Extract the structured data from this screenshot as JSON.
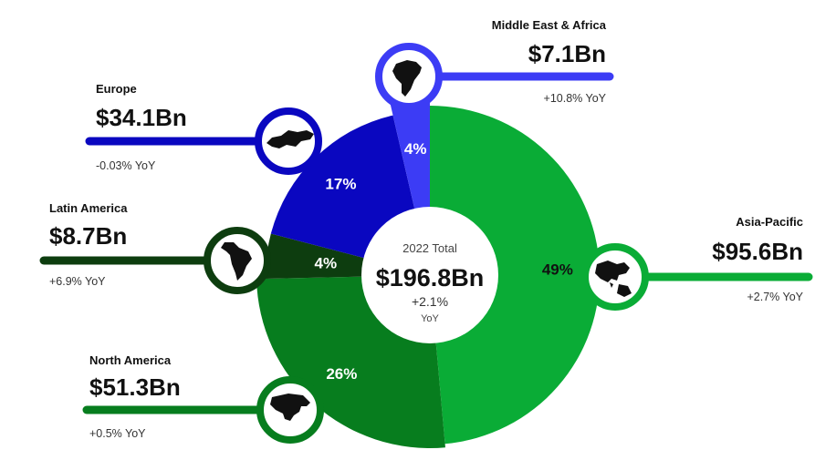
{
  "chart_data": {
    "type": "pie",
    "center": {
      "title": "2022 Total",
      "value": "$196.8Bn",
      "yoy": "+2.1%",
      "yoy_label": "YoY"
    },
    "slices": [
      {
        "name": "Asia-Pacific",
        "value_text": "$95.6Bn",
        "value": 95.6,
        "yoy": "+2.7% YoY",
        "percent_label": "49%",
        "color": "#0aac36",
        "label_color": "#111111",
        "icon": "asia-pacific-map-icon"
      },
      {
        "name": "North America",
        "value_text": "$51.3Bn",
        "value": 51.3,
        "yoy": "+0.5% YoY",
        "percent_label": "26%",
        "color": "#077d1e",
        "label_color": "#ffffff",
        "icon": "north-america-map-icon"
      },
      {
        "name": "Latin America",
        "value_text": "$8.7Bn",
        "value": 8.7,
        "yoy": "+6.9% YoY",
        "percent_label": "4%",
        "color": "#0d3d0f",
        "label_color": "#ffffff",
        "icon": "latin-america-map-icon"
      },
      {
        "name": "Europe",
        "value_text": "$34.1Bn",
        "value": 34.1,
        "yoy": "-0.03% YoY",
        "percent_label": "17%",
        "color": "#0a07c0",
        "label_color": "#ffffff",
        "icon": "europe-map-icon"
      },
      {
        "name": "Middle East & Africa",
        "value_text": "$7.1Bn",
        "value": 7.1,
        "yoy": "+10.8% YoY",
        "percent_label": "4%",
        "color": "#3c3cf5",
        "label_color": "#ffffff",
        "icon": "middle-east-africa-map-icon"
      }
    ]
  }
}
